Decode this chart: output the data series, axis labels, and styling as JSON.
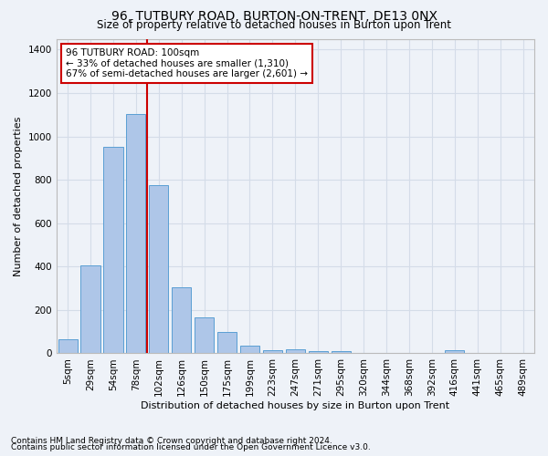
{
  "title": "96, TUTBURY ROAD, BURTON-ON-TRENT, DE13 0NX",
  "subtitle": "Size of property relative to detached houses in Burton upon Trent",
  "xlabel": "Distribution of detached houses by size in Burton upon Trent",
  "ylabel": "Number of detached properties",
  "footnote1": "Contains HM Land Registry data © Crown copyright and database right 2024.",
  "footnote2": "Contains public sector information licensed under the Open Government Licence v3.0.",
  "bar_labels": [
    "5sqm",
    "29sqm",
    "54sqm",
    "78sqm",
    "102sqm",
    "126sqm",
    "150sqm",
    "175sqm",
    "199sqm",
    "223sqm",
    "247sqm",
    "271sqm",
    "295sqm",
    "320sqm",
    "344sqm",
    "368sqm",
    "392sqm",
    "416sqm",
    "441sqm",
    "465sqm",
    "489sqm"
  ],
  "bar_values": [
    65,
    405,
    950,
    1105,
    775,
    305,
    165,
    100,
    35,
    15,
    18,
    12,
    10,
    0,
    0,
    0,
    0,
    15,
    0,
    0,
    0
  ],
  "bar_color": "#aec6e8",
  "bar_edge_color": "#5a9fd4",
  "grid_color": "#d4dce8",
  "background_color": "#eef2f8",
  "vline_color": "#cc0000",
  "vline_index": 4,
  "annotation_title": "96 TUTBURY ROAD: 100sqm",
  "annotation_line1": "← 33% of detached houses are smaller (1,310)",
  "annotation_line2": "67% of semi-detached houses are larger (2,601) →",
  "annotation_box_color": "#ffffff",
  "annotation_box_edge": "#cc0000",
  "ylim": [
    0,
    1450
  ],
  "yticks": [
    0,
    200,
    400,
    600,
    800,
    1000,
    1200,
    1400
  ],
  "title_fontsize": 10,
  "subtitle_fontsize": 8.5,
  "ylabel_fontsize": 8,
  "xlabel_fontsize": 8,
  "tick_fontsize": 7.5,
  "annotation_fontsize": 7.5,
  "footnote_fontsize": 6.5
}
